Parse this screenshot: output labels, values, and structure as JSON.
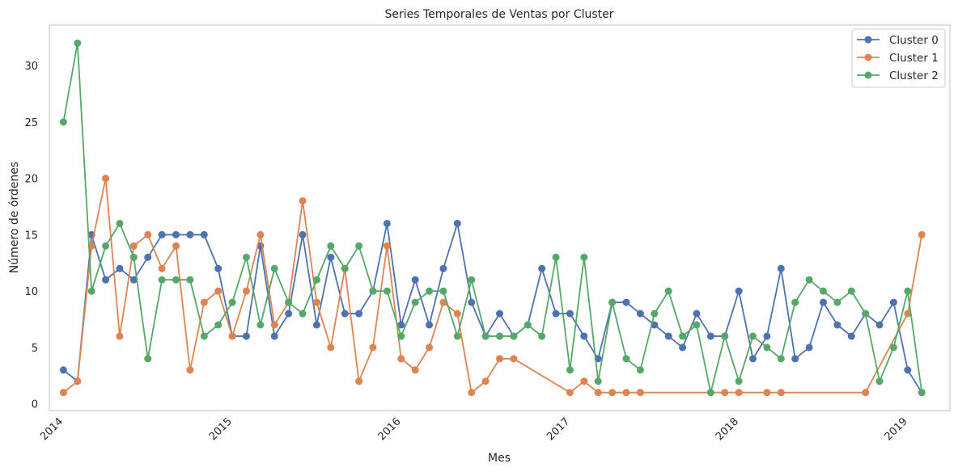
{
  "chart_data": {
    "type": "line",
    "title": "Series Temporales de Ventas por Cluster",
    "xlabel": "Mes",
    "ylabel": "Número de órdenes",
    "xlim": [
      "2013-12-01",
      "2019-04-01"
    ],
    "ylim": [
      -0.6,
      33.6
    ],
    "x_ticks": [
      "2014",
      "2015",
      "2016",
      "2017",
      "2018",
      "2019"
    ],
    "y_ticks": [
      0,
      5,
      10,
      15,
      20,
      25,
      30
    ],
    "grid": false,
    "legend_position": "top-right",
    "series": [
      {
        "name": "Cluster 0",
        "color": "#4c72b0",
        "x": [
          "2014-01",
          "2014-02",
          "2014-03",
          "2014-04",
          "2014-05",
          "2014-06",
          "2014-07",
          "2014-08",
          "2014-09",
          "2014-10",
          "2014-11",
          "2014-12",
          "2015-01",
          "2015-02",
          "2015-03",
          "2015-04",
          "2015-05",
          "2015-06",
          "2015-07",
          "2015-08",
          "2015-09",
          "2015-10",
          "2015-11",
          "2015-12",
          "2016-01",
          "2016-02",
          "2016-03",
          "2016-04",
          "2016-05",
          "2016-06",
          "2016-07",
          "2016-08",
          "2016-09",
          "2016-10",
          "2016-11",
          "2016-12",
          "2017-01",
          "2017-02",
          "2017-03",
          "2017-04",
          "2017-05",
          "2017-06",
          "2017-07",
          "2017-08",
          "2017-09",
          "2017-10",
          "2017-11",
          "2017-12",
          "2018-01",
          "2018-02",
          "2018-03",
          "2018-04",
          "2018-05",
          "2018-06",
          "2018-07",
          "2018-08",
          "2018-09",
          "2018-10",
          "2018-11",
          "2018-12",
          "2019-01",
          "2019-02"
        ],
        "values": [
          3,
          2,
          15,
          11,
          12,
          11,
          13,
          15,
          15,
          15,
          15,
          12,
          6,
          6,
          14,
          6,
          8,
          15,
          7,
          13,
          8,
          8,
          10,
          16,
          7,
          11,
          7,
          12,
          16,
          9,
          6,
          8,
          6,
          7,
          12,
          8,
          8,
          6,
          4,
          9,
          9,
          8,
          7,
          6,
          5,
          8,
          6,
          6,
          10,
          4,
          6,
          12,
          4,
          5,
          9,
          7,
          6,
          8,
          7,
          9,
          3,
          1
        ]
      },
      {
        "name": "Cluster 1",
        "color": "#dd8452",
        "x": [
          "2014-01",
          "2014-02",
          "2014-03",
          "2014-04",
          "2014-05",
          "2014-06",
          "2014-07",
          "2014-08",
          "2014-09",
          "2014-10",
          "2014-11",
          "2014-12",
          "2015-01",
          "2015-02",
          "2015-03",
          "2015-04",
          "2015-05",
          "2015-06",
          "2015-07",
          "2015-08",
          "2015-09",
          "2015-10",
          "2015-11",
          "2015-12",
          "2016-01",
          "2016-02",
          "2016-03",
          "2016-04",
          "2016-05",
          "2016-06",
          "2016-07",
          "2016-08",
          "2016-09",
          "2017-01",
          "2017-02",
          "2017-03",
          "2017-04",
          "2017-05",
          "2017-06",
          "2017-12",
          "2018-01",
          "2018-03",
          "2018-04",
          "2018-10",
          "2019-01",
          "2019-02"
        ],
        "values": [
          1,
          2,
          14,
          20,
          6,
          14,
          15,
          12,
          14,
          3,
          9,
          10,
          6,
          10,
          15,
          7,
          9,
          18,
          9,
          5,
          12,
          2,
          5,
          14,
          4,
          3,
          5,
          9,
          8,
          1,
          2,
          4,
          4,
          1,
          2,
          1,
          1,
          1,
          1,
          1,
          1,
          1,
          1,
          1,
          8,
          15
        ]
      },
      {
        "name": "Cluster 2",
        "color": "#55a868",
        "x": [
          "2014-01",
          "2014-02",
          "2014-03",
          "2014-04",
          "2014-05",
          "2014-06",
          "2014-07",
          "2014-08",
          "2014-09",
          "2014-10",
          "2014-11",
          "2014-12",
          "2015-01",
          "2015-02",
          "2015-03",
          "2015-04",
          "2015-05",
          "2015-06",
          "2015-07",
          "2015-08",
          "2015-09",
          "2015-10",
          "2015-11",
          "2015-12",
          "2016-01",
          "2016-02",
          "2016-03",
          "2016-04",
          "2016-05",
          "2016-06",
          "2016-07",
          "2016-08",
          "2016-09",
          "2016-10",
          "2016-11",
          "2016-12",
          "2017-01",
          "2017-02",
          "2017-03",
          "2017-04",
          "2017-05",
          "2017-06",
          "2017-07",
          "2017-08",
          "2017-09",
          "2017-10",
          "2017-11",
          "2017-12",
          "2018-01",
          "2018-02",
          "2018-03",
          "2018-04",
          "2018-05",
          "2018-06",
          "2018-07",
          "2018-08",
          "2018-09",
          "2018-10",
          "2018-11",
          "2018-12",
          "2019-01",
          "2019-02"
        ],
        "values": [
          25,
          32,
          10,
          14,
          16,
          13,
          4,
          11,
          11,
          11,
          6,
          7,
          9,
          13,
          7,
          12,
          9,
          8,
          11,
          14,
          12,
          14,
          10,
          10,
          6,
          9,
          10,
          10,
          6,
          11,
          6,
          6,
          6,
          7,
          6,
          13,
          3,
          13,
          2,
          9,
          4,
          3,
          8,
          10,
          6,
          7,
          1,
          6,
          2,
          6,
          5,
          4,
          9,
          11,
          10,
          9,
          10,
          8,
          2,
          5,
          10,
          1
        ]
      }
    ]
  }
}
